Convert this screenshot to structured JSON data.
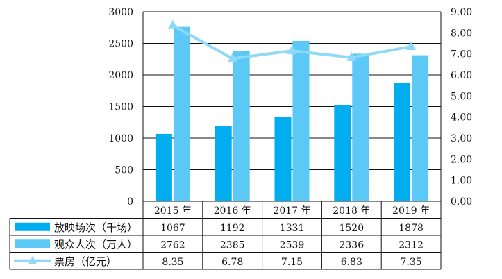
{
  "chart_data": {
    "type": "bar",
    "categories": [
      "2015 年",
      "2016 年",
      "2017 年",
      "2018 年",
      "2019 年"
    ],
    "series": [
      {
        "name": "放映场次（千场）",
        "type": "bar",
        "axis": "left",
        "color": "#00AEEF",
        "values": [
          1067,
          1192,
          1331,
          1520,
          1878
        ]
      },
      {
        "name": "观众人次（万人）",
        "type": "bar",
        "axis": "left",
        "color": "#5BC8F5",
        "values": [
          2762,
          2385,
          2539,
          2336,
          2312
        ]
      },
      {
        "name": "票房（亿元）",
        "type": "line",
        "axis": "right",
        "color": "#8ED8F8",
        "values": [
          8.35,
          6.78,
          7.15,
          6.83,
          7.35
        ]
      }
    ],
    "left_axis": {
      "range": [
        0,
        3000
      ],
      "ticks": [
        "0",
        "500",
        "1000",
        "1500",
        "2000",
        "2500",
        "3000"
      ]
    },
    "right_axis": {
      "range": [
        0,
        9
      ],
      "ticks": [
        "0.00",
        "1.00",
        "2.00",
        "3.00",
        "4.00",
        "5.00",
        "6.00",
        "7.00",
        "8.00",
        "9.00"
      ]
    },
    "gridlines": true,
    "data_table": {
      "rows": [
        [
          "1067",
          "1192",
          "1331",
          "1520",
          "1878"
        ],
        [
          "2762",
          "2385",
          "2539",
          "2336",
          "2312"
        ],
        [
          "8.35",
          "6.78",
          "7.15",
          "6.83",
          "7.35"
        ]
      ]
    }
  }
}
